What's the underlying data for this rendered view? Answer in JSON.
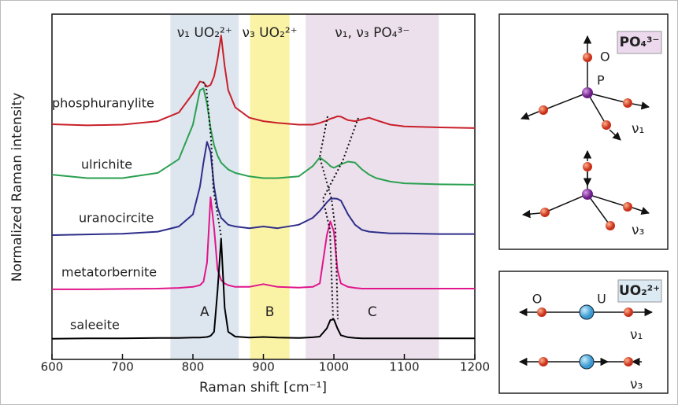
{
  "chart_data": {
    "type": "line",
    "xlabel": "Raman shift [cm⁻¹]",
    "ylabel": "Normalized Raman intensity",
    "xlim": [
      600,
      1200
    ],
    "xticks": [
      600,
      700,
      800,
      900,
      1000,
      1100,
      1200
    ],
    "ylim": [
      0,
      100
    ],
    "x": [
      600,
      650,
      700,
      750,
      780,
      800,
      810,
      815,
      820,
      825,
      830,
      835,
      840,
      845,
      850,
      860,
      880,
      900,
      920,
      950,
      970,
      980,
      990,
      995,
      1000,
      1005,
      1010,
      1020,
      1030,
      1040,
      1050,
      1060,
      1080,
      1100,
      1150,
      1200
    ],
    "series": [
      {
        "name": "phosphuranylite",
        "color": "#c8202a",
        "values": [
          68.1,
          67.8,
          68,
          69,
          71.5,
          77,
          80.5,
          80.2,
          79,
          79.5,
          82,
          87,
          93.8,
          85,
          78,
          73,
          70,
          69,
          68.5,
          68,
          68,
          68.5,
          69.2,
          69.7,
          70,
          70.4,
          70.3,
          69.3,
          69,
          69.5,
          70,
          69.3,
          68,
          67.5,
          67.2,
          67
        ]
      },
      {
        "name": "ulrichite",
        "color": "#2aa050",
        "values": [
          53.5,
          52.5,
          52.5,
          54,
          58,
          68,
          78,
          78.5,
          74,
          67,
          62,
          59,
          57,
          56,
          55,
          54,
          53,
          52.5,
          52.5,
          53,
          56,
          58.5,
          57,
          56,
          55.5,
          56,
          56.5,
          57.3,
          57,
          55,
          53.5,
          52.5,
          51.5,
          51,
          50.7,
          50.6
        ]
      },
      {
        "name": "uranocircite",
        "color": "#2e2e8a",
        "values": [
          36,
          36.2,
          36.4,
          37,
          38.5,
          42,
          50,
          57,
          63,
          60,
          50,
          44,
          41,
          40,
          39,
          38.5,
          38,
          38.5,
          38,
          39,
          41,
          43,
          45.5,
          46.5,
          46.6,
          46.5,
          46,
          42,
          39,
          37.5,
          37,
          36.8,
          36.5,
          36.5,
          36.3,
          36.3
        ]
      },
      {
        "name": "metatorbernite",
        "color": "#e0168a",
        "values": [
          20.3,
          20.3,
          20.4,
          20.5,
          20.7,
          21,
          21.5,
          22.5,
          28,
          47,
          38,
          26,
          23,
          22,
          21.5,
          21,
          21,
          21.8,
          21,
          20.8,
          21,
          22,
          36,
          40,
          37,
          26,
          22,
          21,
          20.7,
          20.5,
          20.5,
          20.5,
          20.5,
          20.5,
          20.5,
          20.5
        ]
      },
      {
        "name": "saleeite",
        "color": "#000000",
        "values": [
          6.0,
          6.1,
          6.1,
          6.2,
          6.2,
          6.3,
          6.3,
          6.4,
          6.5,
          6.8,
          8,
          20,
          35,
          15,
          8,
          6.6,
          6.3,
          6.5,
          6.3,
          6.2,
          6.4,
          6.6,
          9,
          11.4,
          11.6,
          9,
          7,
          6.4,
          6.2,
          6.1,
          6.1,
          6.1,
          6.1,
          6.1,
          6.1,
          6.1
        ]
      }
    ],
    "regions": [
      {
        "label": "A",
        "title": "ν₁ UO₂²⁺",
        "xmin": 768,
        "xmax": 865,
        "color": "#dde5ef"
      },
      {
        "label": "B",
        "title": "ν₃ UO₂²⁺",
        "xmin": 881,
        "xmax": 937,
        "color": "#faf3a6"
      },
      {
        "label": "C",
        "title": "ν₁, ν₃ PO₄³⁻",
        "xmin": 960,
        "xmax": 1149,
        "color": "#ece0ec"
      }
    ]
  },
  "phosphate_panel": {
    "badge": "PO₄³⁻",
    "atom_o": "O",
    "atom_p": "P",
    "mode_1": "ν₁",
    "mode_3": "ν₃"
  },
  "uranyl_panel": {
    "badge": "UO₂²⁺",
    "atom_o": "O",
    "atom_u": "U",
    "mode_1": "ν₁",
    "mode_3": "ν₃"
  }
}
